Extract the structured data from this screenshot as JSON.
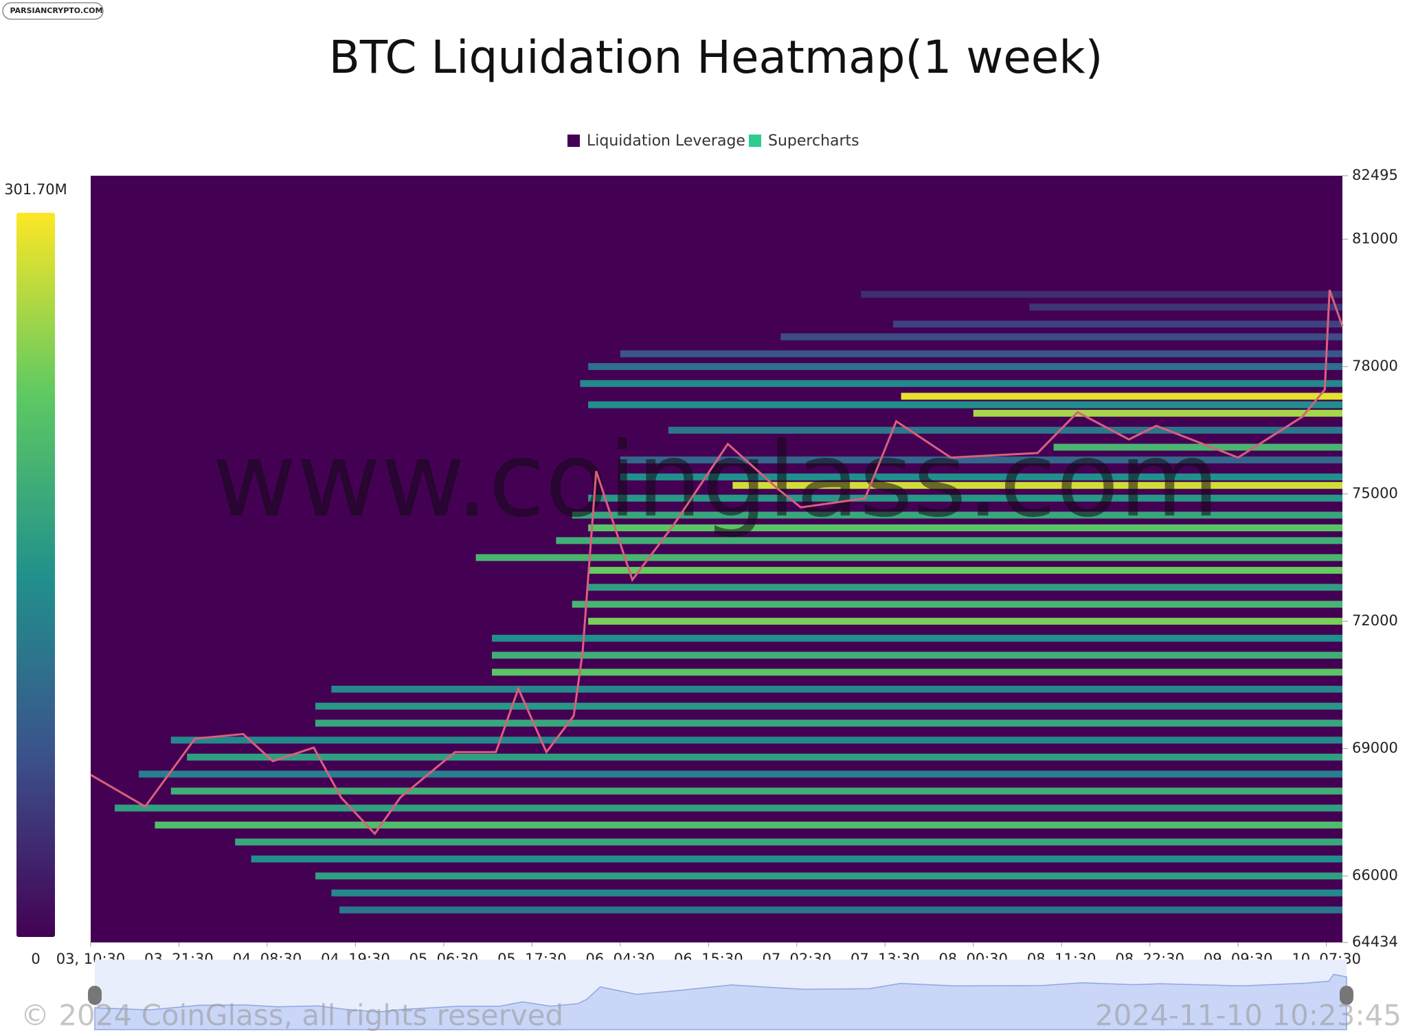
{
  "brand": "PARSIANCRYPTO.COM",
  "chart_data": {
    "type": "heatmap",
    "title": "BTC Liquidation Heatmap(1 week)",
    "legend": [
      "Liquidation Leverage",
      "Supercharts"
    ],
    "legend_colors": [
      "#440154",
      "#2ecc8f"
    ],
    "watermark": "www.coinglass.com",
    "footer_left": "© 2024 CoinGlass, all rights reserved",
    "footer_right": "2024-11-10 10:23:45",
    "colorbar_ticks": [
      0,
      {
        "value": 301.7,
        "label": "301.70M"
      }
    ],
    "xlim": [
      0,
      156
    ],
    "xticks": [
      {
        "value": 0,
        "label": "03, 10:30"
      },
      {
        "value": 11,
        "label": "03, 21:30"
      },
      {
        "value": 22,
        "label": "04, 08:30"
      },
      {
        "value": 33,
        "label": "04, 19:30"
      },
      {
        "value": 44,
        "label": "05, 06:30"
      },
      {
        "value": 55,
        "label": "05, 17:30"
      },
      {
        "value": 66,
        "label": "06, 04:30"
      },
      {
        "value": 77,
        "label": "06, 15:30"
      },
      {
        "value": 88,
        "label": "07, 02:30"
      },
      {
        "value": 99,
        "label": "07, 13:30"
      },
      {
        "value": 110,
        "label": "08, 00:30"
      },
      {
        "value": 121,
        "label": "08, 11:30"
      },
      {
        "value": 132,
        "label": "08, 22:30"
      },
      {
        "value": 143,
        "label": "09, 09:30"
      },
      {
        "value": 154,
        "label": "10, 07:30"
      }
    ],
    "ylim": [
      64434,
      82495
    ],
    "yticks": [
      64434,
      66000,
      69000,
      72000,
      75000,
      78000,
      81000,
      82495
    ],
    "bands": {
      "price": [
        79700,
        79400,
        79000,
        78700,
        78300,
        78000,
        77600,
        77300,
        77100,
        76900,
        76500,
        76100,
        75800,
        75400,
        75200,
        74900,
        74500,
        74200,
        73900,
        73500,
        73200,
        72800,
        72400,
        72000,
        71600,
        71200,
        70800,
        70400,
        70000,
        69600,
        69200,
        68800,
        68400,
        68000,
        67600,
        67200,
        66800,
        66400,
        66000,
        65600,
        65200
      ],
      "start": [
        96,
        117,
        100,
        86,
        66,
        62,
        61,
        101,
        62,
        110,
        72,
        120,
        66,
        66,
        80,
        62,
        60,
        62,
        58,
        48,
        62,
        62,
        60,
        62,
        50,
        50,
        50,
        30,
        28,
        28,
        10,
        12,
        6,
        10,
        3,
        8,
        18,
        20,
        28,
        30,
        31
      ],
      "values": [
        40,
        50,
        60,
        70,
        80,
        110,
        140,
        290,
        150,
        260,
        120,
        200,
        100,
        150,
        280,
        160,
        180,
        220,
        190,
        200,
        230,
        170,
        200,
        240,
        150,
        190,
        220,
        140,
        160,
        180,
        140,
        170,
        130,
        190,
        170,
        210,
        180,
        150,
        170,
        140,
        120
      ]
    },
    "price": {
      "color": "#d9607c",
      "x": [
        0,
        6.8,
        13,
        19,
        22.7,
        27.8,
        31.2,
        35.4,
        38.6,
        45.4,
        50.5,
        53.3,
        56.8,
        60.2,
        61.3,
        63,
        67.5,
        72.6,
        79.4,
        85.7,
        88.5,
        96.5,
        100.4,
        107.2,
        118,
        123,
        129.4,
        132.8,
        143,
        151,
        153.8,
        154.4,
        156
      ],
      "values": [
        68383,
        67636,
        69237,
        69343,
        68704,
        69024,
        67850,
        66995,
        67850,
        68917,
        68917,
        70412,
        68917,
        69771,
        71266,
        75536,
        72974,
        74255,
        76176,
        75109,
        74682,
        74896,
        76710,
        75856,
        75963,
        76924,
        76283,
        76603,
        75856,
        76817,
        77457,
        79805,
        78951
      ]
    }
  }
}
